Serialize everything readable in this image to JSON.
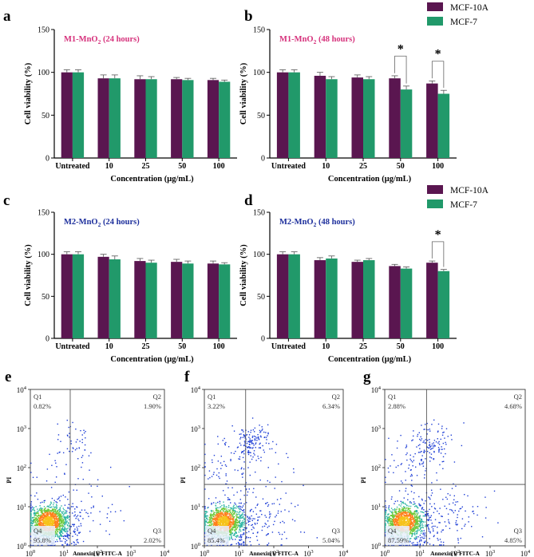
{
  "colors": {
    "mcf10a": "#5a1650",
    "mcf7": "#21996a",
    "title_m1": "#d6327c",
    "title_m2": "#1d2f9c",
    "axis": "#000000",
    "quad_line": "#444444"
  },
  "chart_data": [
    {
      "panel": "a",
      "type": "bar",
      "title_formula": "M1-MnO",
      "title_sub": "2",
      "title_suffix": " (24 hours)",
      "categories": [
        "Untreated",
        "10",
        "25",
        "50",
        "100"
      ],
      "series": [
        {
          "name": "MCF-10A",
          "values": [
            100,
            93,
            92,
            92,
            91
          ],
          "errors": [
            3,
            4,
            4,
            2,
            2
          ]
        },
        {
          "name": "MCF-7",
          "values": [
            100,
            93,
            92,
            91,
            89
          ],
          "errors": [
            3,
            4,
            3,
            2,
            2
          ]
        }
      ],
      "ylabel": "Cell viability (%)",
      "xlabel": "Concentration (μg/mL)",
      "ylim": [
        0,
        150
      ],
      "yticks": [
        0,
        50,
        100,
        150
      ],
      "legend": false,
      "significance": []
    },
    {
      "panel": "b",
      "type": "bar",
      "title_formula": "M1-MnO",
      "title_sub": "2",
      "title_suffix": " (48 hours)",
      "categories": [
        "Untreated",
        "10",
        "25",
        "50",
        "100"
      ],
      "series": [
        {
          "name": "MCF-10A",
          "values": [
            100,
            96,
            94,
            93,
            87
          ],
          "errors": [
            3,
            4,
            3,
            3,
            3
          ]
        },
        {
          "name": "MCF-7",
          "values": [
            100,
            92,
            92,
            80,
            75
          ],
          "errors": [
            3,
            3,
            3,
            4,
            4
          ]
        }
      ],
      "ylabel": "Cell viability (%)",
      "xlabel": "Concentration (μg/mL)",
      "ylim": [
        0,
        150
      ],
      "yticks": [
        0,
        50,
        100,
        150
      ],
      "legend": true,
      "legend_position": "top-right",
      "significance": [
        {
          "category": "50",
          "label": "*"
        },
        {
          "category": "100",
          "label": "*"
        }
      ]
    },
    {
      "panel": "c",
      "type": "bar",
      "title_formula": "M2-MnO",
      "title_sub": "2",
      "title_suffix": " (24 hours)",
      "categories": [
        "Untreated",
        "10",
        "25",
        "50",
        "100"
      ],
      "series": [
        {
          "name": "MCF-10A",
          "values": [
            100,
            97,
            92,
            91,
            89
          ],
          "errors": [
            3,
            3,
            3,
            3,
            3
          ]
        },
        {
          "name": "MCF-7",
          "values": [
            100,
            94,
            90,
            89,
            88
          ],
          "errors": [
            3,
            4,
            3,
            3,
            2
          ]
        }
      ],
      "ylabel": "Cell viability (%)",
      "xlabel": "Concentration (μg/mL)",
      "ylim": [
        0,
        150
      ],
      "yticks": [
        0,
        50,
        100,
        150
      ],
      "legend": false,
      "significance": []
    },
    {
      "panel": "d",
      "type": "bar",
      "title_formula": "M2-MnO",
      "title_sub": "2",
      "title_suffix": " (48 hours)",
      "categories": [
        "Untreated",
        "10",
        "25",
        "50",
        "100"
      ],
      "series": [
        {
          "name": "MCF-10A",
          "values": [
            100,
            93,
            91,
            86,
            90
          ],
          "errors": [
            3,
            3,
            2,
            2,
            2
          ]
        },
        {
          "name": "MCF-7",
          "values": [
            100,
            95,
            93,
            83,
            80
          ],
          "errors": [
            3,
            3,
            2,
            2,
            2
          ]
        }
      ],
      "ylabel": "Cell viability (%)",
      "xlabel": "Concentration (μg/mL)",
      "ylim": [
        0,
        150
      ],
      "yticks": [
        0,
        50,
        100,
        150
      ],
      "legend": true,
      "legend_position": "top-right",
      "significance": [
        {
          "category": "100",
          "label": "*"
        }
      ]
    },
    {
      "panel": "e",
      "type": "scatter",
      "subtype": "flow-cytometry-density",
      "xlabel": "Annexin V FITC-A",
      "ylabel": "PI",
      "axis_ticks": [
        {
          "base": "10",
          "exp": "0"
        },
        {
          "base": "10",
          "exp": "1"
        },
        {
          "base": "10",
          "exp": "2"
        },
        {
          "base": "10",
          "exp": "3"
        },
        {
          "base": "10",
          "exp": "4"
        }
      ],
      "quadrants": [
        {
          "id": "Q1",
          "value": "0.82%"
        },
        {
          "id": "Q2",
          "value": "1.90%"
        },
        {
          "id": "Q3",
          "value": "2.02%"
        },
        {
          "id": "Q4",
          "value": "95.8%"
        }
      ]
    },
    {
      "panel": "f",
      "type": "scatter",
      "subtype": "flow-cytometry-density",
      "xlabel": "Annexin V FITC-A",
      "ylabel": "PI",
      "axis_ticks": [
        {
          "base": "10",
          "exp": "0"
        },
        {
          "base": "10",
          "exp": "1"
        },
        {
          "base": "10",
          "exp": "2"
        },
        {
          "base": "10",
          "exp": "3"
        },
        {
          "base": "10",
          "exp": "4"
        }
      ],
      "quadrants": [
        {
          "id": "Q1",
          "value": "3.22%"
        },
        {
          "id": "Q2",
          "value": "6.34%"
        },
        {
          "id": "Q3",
          "value": "5.04%"
        },
        {
          "id": "Q4",
          "value": "85.4%"
        }
      ]
    },
    {
      "panel": "g",
      "type": "scatter",
      "subtype": "flow-cytometry-density",
      "xlabel": "Annexin V FITC-A",
      "ylabel": "PI",
      "axis_ticks": [
        {
          "base": "10",
          "exp": "0"
        },
        {
          "base": "10",
          "exp": "1"
        },
        {
          "base": "10",
          "exp": "2"
        },
        {
          "base": "10",
          "exp": "3"
        },
        {
          "base": "10",
          "exp": "4"
        }
      ],
      "quadrants": [
        {
          "id": "Q1",
          "value": "2.88%"
        },
        {
          "id": "Q2",
          "value": "4.68%"
        },
        {
          "id": "Q3",
          "value": "4.85%"
        },
        {
          "id": "Q4",
          "value": "87.59%"
        }
      ]
    }
  ]
}
